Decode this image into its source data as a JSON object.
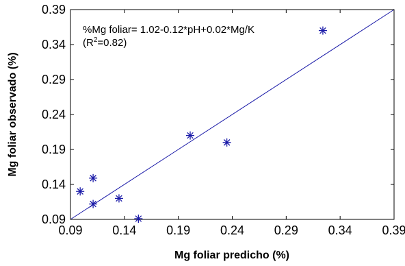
{
  "chart_data": {
    "type": "scatter",
    "title": "",
    "xlabel": "Mg foliar predicho (%)",
    "ylabel": "Mg foliar observado (%)",
    "xlim": [
      0.09,
      0.39
    ],
    "ylim": [
      0.09,
      0.39
    ],
    "xticks": [
      "0.09",
      "0.14",
      "0.19",
      "0.24",
      "0.29",
      "0.34",
      "0.39"
    ],
    "yticks": [
      "0.09",
      "0.14",
      "0.19",
      "0.24",
      "0.29",
      "0.34",
      "0.39"
    ],
    "grid": false,
    "marker": "asterisk",
    "color": "#1a1aa8",
    "points": [
      {
        "x": 0.099,
        "y": 0.13
      },
      {
        "x": 0.111,
        "y": 0.149
      },
      {
        "x": 0.111,
        "y": 0.112
      },
      {
        "x": 0.135,
        "y": 0.12
      },
      {
        "x": 0.153,
        "y": 0.091
      },
      {
        "x": 0.201,
        "y": 0.21
      },
      {
        "x": 0.235,
        "y": 0.2
      },
      {
        "x": 0.324,
        "y": 0.36
      }
    ],
    "fit_line": {
      "x": [
        0.09,
        0.39
      ],
      "y": [
        0.09,
        0.39
      ]
    },
    "annotations": {
      "line1": "%Mg foliar= 1.02-0.12*pH+0.02*Mg/K",
      "r2_prefix": "(R",
      "r2_sup": "2",
      "r2_suffix": "=0.82)"
    }
  }
}
